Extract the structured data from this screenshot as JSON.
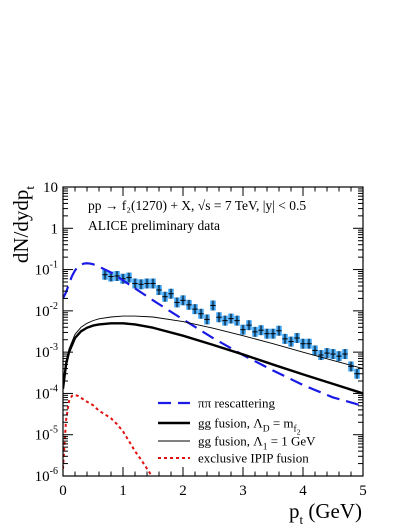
{
  "chart_data": {
    "type": "line",
    "title": "",
    "xlabel": "p",
    "xlabel_sub": "t",
    "xlabel_unit": " (GeV)",
    "ylabel": "dN/dydp",
    "ylabel_sub": "t",
    "xlim": [
      0,
      5
    ],
    "ylim": [
      1e-06,
      10
    ],
    "y_scale": "log",
    "grid": false,
    "legend_position": "bottom-right",
    "x_ticks": [
      "0",
      "1",
      "2",
      "3",
      "4",
      "5"
    ],
    "y_ticks": [
      {
        "base": "10",
        "exp": "-6"
      },
      {
        "base": "10",
        "exp": "-5"
      },
      {
        "base": "10",
        "exp": "-4"
      },
      {
        "base": "10",
        "exp": "-3"
      },
      {
        "base": "10",
        "exp": "-2"
      },
      {
        "base": "10",
        "exp": "-1"
      },
      {
        "base": "1",
        "exp": ""
      },
      {
        "base": "10",
        "exp": ""
      }
    ],
    "annotations": [
      "pp → f₂(1270) + X,  √s = 7 TeV,  |y| < 0.5",
      "ALICE preliminary data"
    ],
    "series": [
      {
        "name": "ππ rescattering",
        "color": "#1a1ae6",
        "style": "dashed",
        "x": [
          0.0,
          0.05,
          0.1,
          0.15,
          0.2,
          0.25,
          0.3,
          0.35,
          0.4,
          0.45,
          0.5,
          0.6,
          0.7,
          0.8,
          1.0,
          1.2,
          1.5,
          1.8,
          2.0,
          2.5,
          3.0,
          3.5,
          4.0,
          4.5,
          5.0
        ],
        "y": [
          0.02,
          0.028,
          0.045,
          0.07,
          0.095,
          0.118,
          0.132,
          0.14,
          0.142,
          0.14,
          0.135,
          0.118,
          0.1,
          0.085,
          0.055,
          0.035,
          0.018,
          0.0095,
          0.0062,
          0.0022,
          0.00085,
          0.00036,
          0.00016,
          8e-05,
          5e-05
        ]
      },
      {
        "name": "gg fusion, Λ_D = m_f₂",
        "color": "#000000",
        "style": "solid-thick",
        "x": [
          0.0,
          0.05,
          0.1,
          0.2,
          0.3,
          0.4,
          0.5,
          0.6,
          0.8,
          1.0,
          1.2,
          1.5,
          2.0,
          2.5,
          3.0,
          3.5,
          4.0,
          4.5,
          5.0
        ],
        "y": [
          0.00013,
          0.0005,
          0.001,
          0.0022,
          0.0032,
          0.0039,
          0.0044,
          0.0047,
          0.005,
          0.005,
          0.0047,
          0.0039,
          0.0025,
          0.0015,
          0.00088,
          0.0005,
          0.00029,
          0.00017,
          0.0001
        ]
      },
      {
        "name": "gg fusion, Λ₁ = 1 GeV",
        "color": "#000000",
        "style": "solid-thin",
        "x": [
          0.0,
          0.05,
          0.1,
          0.2,
          0.3,
          0.4,
          0.5,
          0.6,
          0.8,
          1.0,
          1.2,
          1.5,
          2.0,
          2.5,
          3.0,
          3.5,
          4.0,
          4.5,
          5.0
        ],
        "y": [
          0.00015,
          0.0006,
          0.0012,
          0.0027,
          0.004,
          0.005,
          0.0058,
          0.0064,
          0.0071,
          0.0075,
          0.0075,
          0.0071,
          0.0055,
          0.0038,
          0.0025,
          0.0016,
          0.001,
          0.00063,
          0.0004
        ]
      },
      {
        "name": "exclusive IPIP fusion",
        "color": "#e01010",
        "style": "dotted",
        "x": [
          0.0,
          0.05,
          0.1,
          0.15,
          0.2,
          0.25,
          0.3,
          0.4,
          0.5,
          0.6,
          0.7,
          0.8,
          0.9,
          1.0,
          1.1,
          1.2,
          1.3,
          1.4,
          1.48
        ],
        "y": [
          1.5e-06,
          2.2e-05,
          6.5e-05,
          8.8e-05,
          9.2e-05,
          8.7e-05,
          7.8e-05,
          6.3e-05,
          5.2e-05,
          3.8e-05,
          3.1e-05,
          2.5e-05,
          1.8e-05,
          1.2e-05,
          7e-06,
          4e-06,
          2.5e-06,
          1.5e-06,
          1e-06
        ]
      },
      {
        "name": "ALICE preliminary data",
        "type": "scatter",
        "color": "#3aa0f0",
        "x": [
          0.7,
          0.8,
          0.9,
          1.0,
          1.1,
          1.2,
          1.3,
          1.4,
          1.5,
          1.6,
          1.7,
          1.8,
          1.9,
          2.0,
          2.1,
          2.2,
          2.3,
          2.4,
          2.5,
          2.6,
          2.7,
          2.8,
          2.9,
          3.0,
          3.1,
          3.2,
          3.3,
          3.4,
          3.5,
          3.6,
          3.7,
          3.8,
          3.9,
          4.0,
          4.1,
          4.2,
          4.3,
          4.4,
          4.5,
          4.6,
          4.7,
          4.8,
          4.9
        ],
        "y": [
          0.075,
          0.068,
          0.07,
          0.06,
          0.064,
          0.046,
          0.044,
          0.046,
          0.046,
          0.032,
          0.022,
          0.026,
          0.016,
          0.018,
          0.014,
          0.011,
          0.0085,
          0.0062,
          0.0135,
          0.007,
          0.0058,
          0.0065,
          0.0058,
          0.0035,
          0.0045,
          0.0031,
          0.0034,
          0.0028,
          0.0028,
          0.0033,
          0.0021,
          0.0018,
          0.0022,
          0.0016,
          0.0016,
          0.0011,
          0.00085,
          0.00095,
          0.0009,
          0.0008,
          0.0009,
          0.00045,
          0.0003
        ]
      }
    ]
  }
}
